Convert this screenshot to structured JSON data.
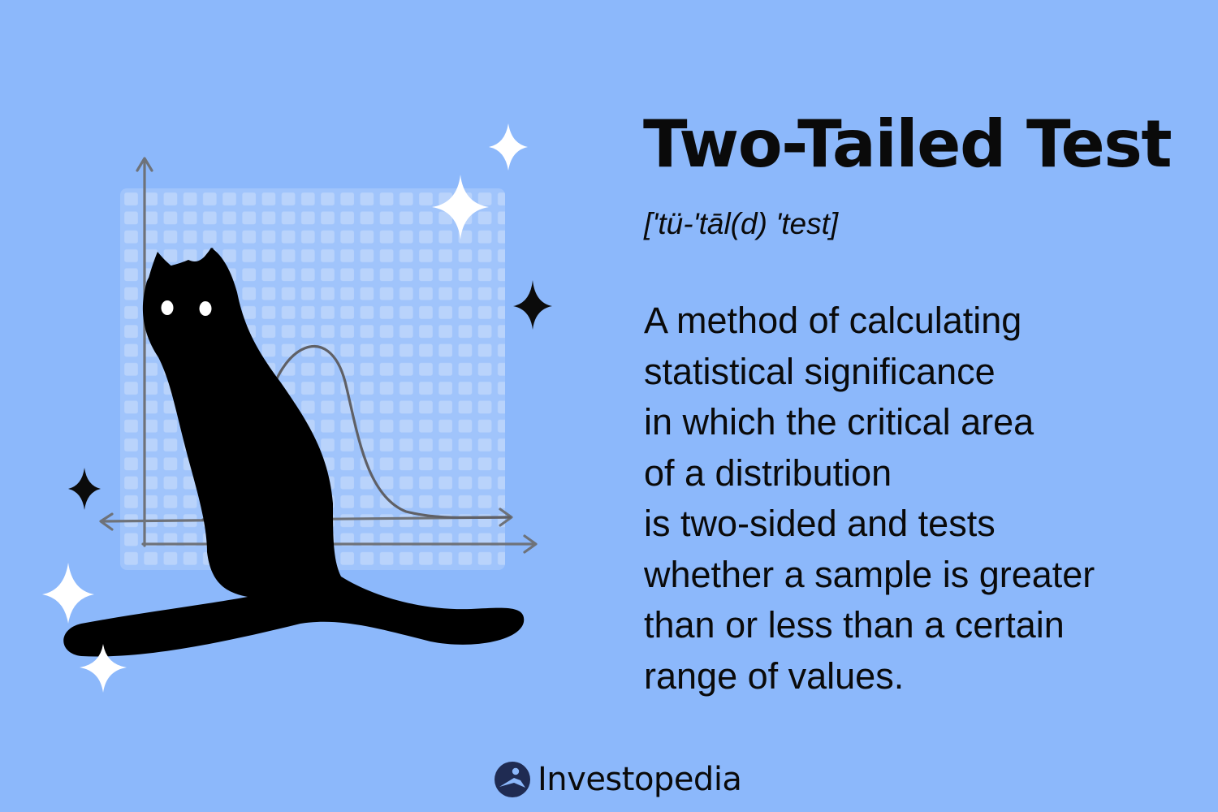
{
  "title": "Two-Tailed Test",
  "pronunciation": "['tü-'tāl(d) 'test]",
  "definition_lines": [
    "A method of calculating",
    "statistical significance",
    "in which the critical area",
    "of a distribution",
    "is two-sided and tests",
    "whether a sample is greater",
    "than or less than a certain",
    "range of values."
  ],
  "brand": {
    "name": "Investopedia",
    "icon": "investopedia-logo-icon"
  },
  "illustration": {
    "subject": "cat-icon",
    "decorations": [
      "sparkle-icon"
    ]
  },
  "colors": {
    "background": "#8cb8fb",
    "text": "#0a0a0a",
    "grid": "#b9d3fb",
    "axis": "#6e7279",
    "curve": "#5f6066",
    "cat": "#000000",
    "eyes": "#ffffff",
    "sparkle_light": "#ffffff",
    "sparkle_dark": "#0b0b0b",
    "brand_mark": "#1f2b52"
  }
}
